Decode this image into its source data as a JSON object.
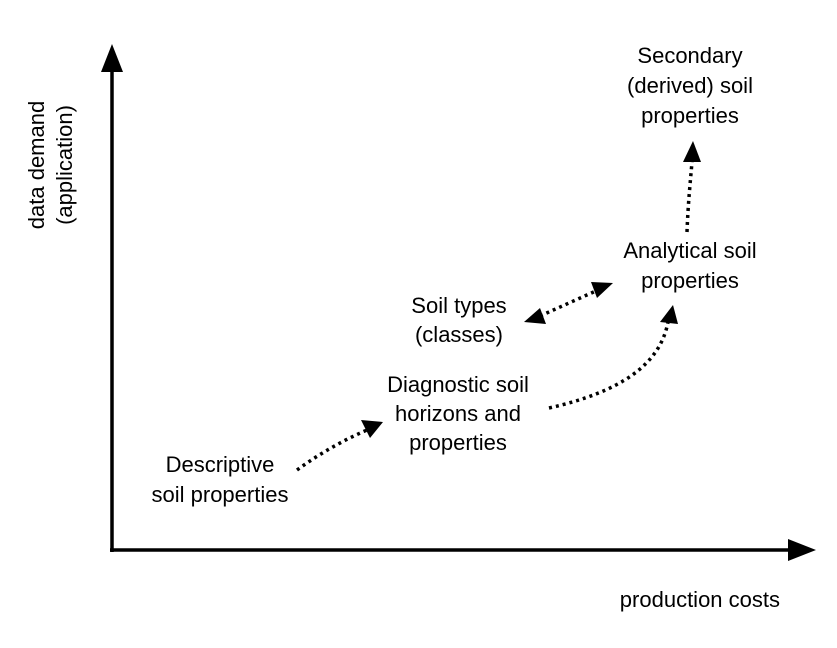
{
  "axes": {
    "x_label": "production costs",
    "y_label_line1": "data demand",
    "y_label_line2": "(application)"
  },
  "nodes": {
    "descriptive": {
      "lines": [
        "Descriptive",
        "soil properties"
      ]
    },
    "diagnostic": {
      "lines": [
        "Diagnostic soil",
        "horizons and",
        "properties"
      ]
    },
    "soil_types": {
      "lines": [
        "Soil types",
        "(classes)"
      ]
    },
    "analytical": {
      "lines": [
        "Analytical soil",
        "properties"
      ]
    },
    "secondary": {
      "lines": [
        "Secondary",
        "(derived) soil",
        "properties"
      ]
    }
  },
  "colors": {
    "ink": "#000000",
    "background": "#ffffff"
  }
}
